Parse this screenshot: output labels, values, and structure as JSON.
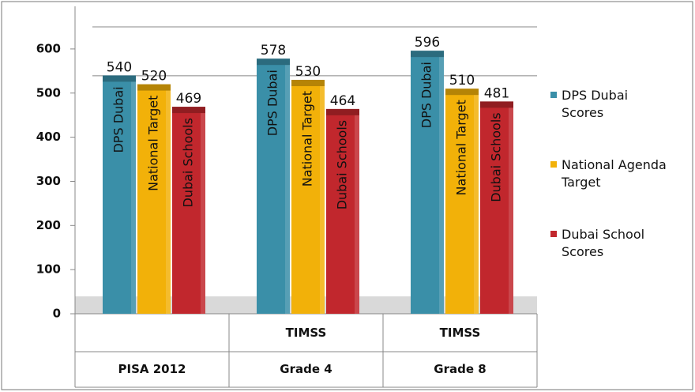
{
  "chart_data": {
    "type": "bar",
    "categories": [
      "PISA 2012",
      "TIMSS\nGrade 4",
      "TIMSS\nGrade 8"
    ],
    "series": [
      {
        "name": "DPS Dubai\nScores",
        "bar_label": "DPS Dubai",
        "color": "#3a8fa8",
        "values": [
          540,
          578,
          596
        ]
      },
      {
        "name": "National Agenda\nTarget",
        "bar_label": "National Target",
        "color": "#f2b109",
        "values": [
          520,
          530,
          510
        ]
      },
      {
        "name": "Dubai School\nScores",
        "bar_label": "Dubai Schools",
        "color": "#c1272d",
        "values": [
          469,
          464,
          481
        ]
      }
    ],
    "ylim": [
      0,
      650
    ],
    "yticks": [
      0,
      100,
      200,
      300,
      400,
      500,
      600
    ],
    "grid": false,
    "legend": "right"
  }
}
